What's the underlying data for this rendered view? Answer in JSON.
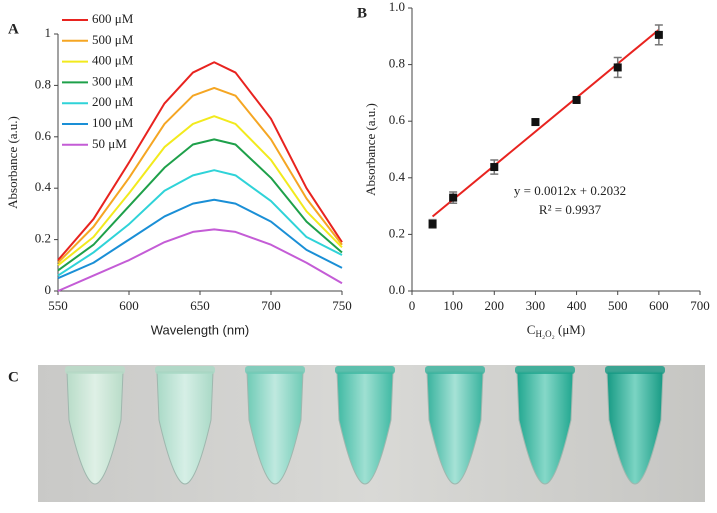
{
  "chart_data": [
    {
      "type": "line",
      "label": "A",
      "y_label": "Absorbance (a.u.)",
      "x_label": "Wavelength (nm)",
      "x": [
        550,
        575,
        600,
        625,
        645,
        660,
        675,
        700,
        725,
        750
      ],
      "xlim": [
        550,
        750
      ],
      "xticks": [
        550,
        600,
        650,
        700,
        750
      ],
      "ylim": [
        0,
        1
      ],
      "yticks": [
        0,
        0.2,
        0.4,
        0.6,
        0.8,
        1
      ],
      "legend": "top-left",
      "series": [
        {
          "name": "600 μM",
          "color": "#e8231f",
          "values": [
            0.12,
            0.28,
            0.5,
            0.73,
            0.85,
            0.89,
            0.85,
            0.67,
            0.4,
            0.19
          ]
        },
        {
          "name": "500 μM",
          "color": "#f5a623",
          "values": [
            0.11,
            0.25,
            0.44,
            0.65,
            0.76,
            0.79,
            0.76,
            0.59,
            0.36,
            0.18
          ]
        },
        {
          "name": "400 μM",
          "color": "#f2ea1d",
          "values": [
            0.1,
            0.21,
            0.38,
            0.56,
            0.65,
            0.68,
            0.65,
            0.51,
            0.31,
            0.17
          ]
        },
        {
          "name": "300 μM",
          "color": "#1ea04a",
          "values": [
            0.08,
            0.18,
            0.33,
            0.48,
            0.57,
            0.59,
            0.57,
            0.44,
            0.27,
            0.15
          ]
        },
        {
          "name": "200 μM",
          "color": "#2fd3d8",
          "values": [
            0.06,
            0.15,
            0.26,
            0.39,
            0.45,
            0.47,
            0.45,
            0.35,
            0.21,
            0.14
          ]
        },
        {
          "name": "100 μM",
          "color": "#1a8fd6",
          "values": [
            0.05,
            0.11,
            0.2,
            0.29,
            0.34,
            0.355,
            0.34,
            0.27,
            0.16,
            0.09
          ]
        },
        {
          "name": "50 μM",
          "color": "#c45cd6",
          "values": [
            0.0,
            0.06,
            0.12,
            0.19,
            0.23,
            0.24,
            0.23,
            0.18,
            0.11,
            0.03
          ]
        }
      ]
    },
    {
      "type": "scatter",
      "label": "B",
      "y_label": "Absorbance (a.u.)",
      "x_label": [
        "C",
        "H₂O₂",
        " (μM)"
      ],
      "x": [
        50,
        100,
        200,
        300,
        400,
        500,
        600
      ],
      "values": [
        0.237,
        0.33,
        0.438,
        0.597,
        0.675,
        0.79,
        0.905
      ],
      "errors": [
        0.015,
        0.02,
        0.025,
        0.01,
        0.01,
        0.035,
        0.035
      ],
      "color": "#111111",
      "error_color": "#777777",
      "fit": {
        "x": [
          50,
          600
        ],
        "values": [
          0.2632,
          0.9232
        ],
        "color": "#e8231f"
      },
      "annotations": [
        "y = 0.0012x + 0.2032",
        "R² = 0.9937"
      ],
      "xlim": [
        0,
        700
      ],
      "xticks": [
        0,
        100,
        200,
        300,
        400,
        500,
        600,
        700
      ],
      "ylim": [
        0,
        1
      ],
      "yticks": [
        {
          "value": 0,
          "label": "0.0"
        },
        0.2,
        0.4,
        0.6,
        0.8,
        {
          "value": 1,
          "label": "1.0"
        }
      ]
    }
  ],
  "photo": {
    "label": "C"
  }
}
